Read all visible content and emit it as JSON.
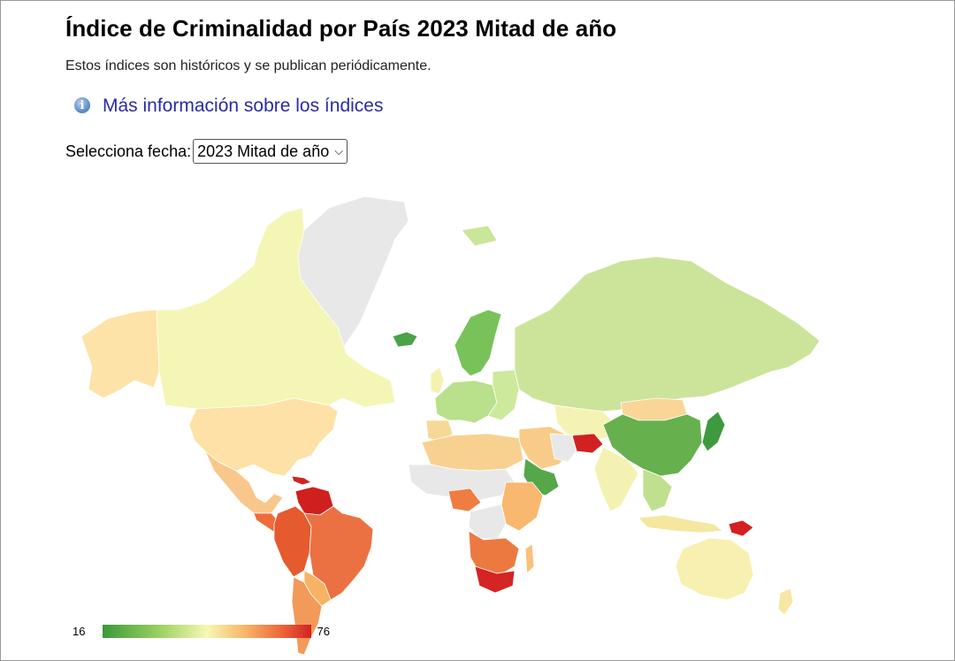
{
  "page": {
    "title": "Índice de Criminalidad por País 2023 Mitad de año",
    "subtitle": "Estos índices son históricos y se publican periódicamente.",
    "info_link": "Más información sobre los índices",
    "date_label": "Selecciona fecha:",
    "date_selected": "2023 Mitad de año"
  },
  "legend": {
    "min": "16",
    "max": "76",
    "colors": [
      "#3a9a3a",
      "#9fd264",
      "#f8f7b4",
      "#f8b66a",
      "#ee6a3a",
      "#d42222"
    ]
  },
  "map": {
    "no_data_color": "#e8e8e8",
    "border_color": "#ffffff"
  }
}
